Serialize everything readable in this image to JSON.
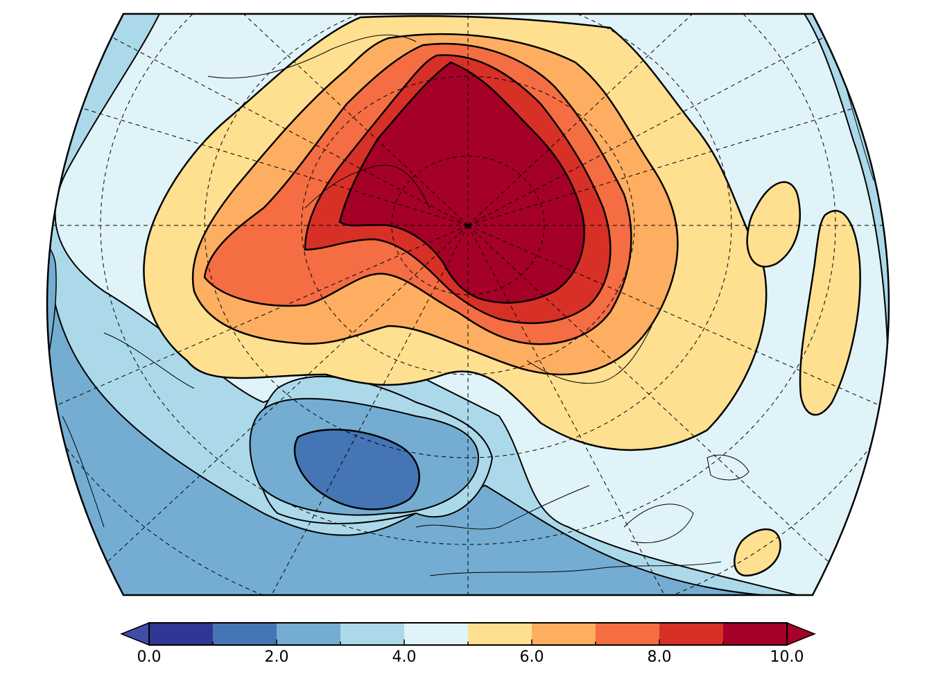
{
  "map": {
    "projection": "polar",
    "graticule": "dashed",
    "coastlines": true,
    "fields": [
      {
        "level": 1,
        "color": "#4575b4"
      },
      {
        "level": 2,
        "color": "#74add1"
      },
      {
        "level": 3,
        "color": "#abd9e9"
      },
      {
        "level": 4,
        "color": "#e0f3f8"
      },
      {
        "level": 5,
        "color": "#fee090"
      },
      {
        "level": 6,
        "color": "#fdae61"
      },
      {
        "level": 7,
        "color": "#f46d43"
      },
      {
        "level": 8,
        "color": "#d73027"
      },
      {
        "level": 9,
        "color": "#a50026"
      }
    ]
  },
  "colorbar": {
    "extend": "both",
    "under_color": "#3f4ea8",
    "over_color": "#a50026",
    "bins": [
      {
        "from": 0,
        "to": 1,
        "color": "#313695"
      },
      {
        "from": 1,
        "to": 2,
        "color": "#4575b4"
      },
      {
        "from": 2,
        "to": 3,
        "color": "#74add1"
      },
      {
        "from": 3,
        "to": 4,
        "color": "#abd9e9"
      },
      {
        "from": 4,
        "to": 5,
        "color": "#e0f3f8"
      },
      {
        "from": 5,
        "to": 6,
        "color": "#fee090"
      },
      {
        "from": 6,
        "to": 7,
        "color": "#fdae61"
      },
      {
        "from": 7,
        "to": 8,
        "color": "#f46d43"
      },
      {
        "from": 8,
        "to": 9,
        "color": "#d73027"
      },
      {
        "from": 9,
        "to": 10,
        "color": "#a50026"
      }
    ],
    "tick_labels": [
      {
        "value": 0,
        "label": "0.0"
      },
      {
        "value": 2,
        "label": "2.0"
      },
      {
        "value": 4,
        "label": "4.0"
      },
      {
        "value": 6,
        "label": "6.0"
      },
      {
        "value": 8,
        "label": "8.0"
      },
      {
        "value": 10,
        "label": "10.0"
      }
    ],
    "minor_ticks": [
      1,
      3,
      5,
      7,
      9
    ]
  }
}
